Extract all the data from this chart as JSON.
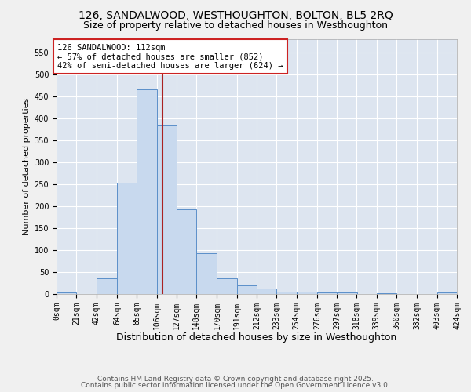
{
  "title1": "126, SANDALWOOD, WESTHOUGHTON, BOLTON, BL5 2RQ",
  "title2": "Size of property relative to detached houses in Westhoughton",
  "xlabel": "Distribution of detached houses by size in Westhoughton",
  "ylabel": "Number of detached properties",
  "bar_color": "#c8d9ee",
  "bar_edge_color": "#5b8fc9",
  "background_color": "#dde5f0",
  "grid_color": "#ffffff",
  "bins": [
    "0sqm",
    "21sqm",
    "42sqm",
    "64sqm",
    "85sqm",
    "106sqm",
    "127sqm",
    "148sqm",
    "170sqm",
    "191sqm",
    "212sqm",
    "233sqm",
    "254sqm",
    "276sqm",
    "297sqm",
    "318sqm",
    "339sqm",
    "360sqm",
    "382sqm",
    "403sqm",
    "424sqm"
  ],
  "bin_edges": [
    0,
    21,
    42,
    64,
    85,
    106,
    127,
    148,
    170,
    191,
    212,
    233,
    254,
    276,
    297,
    318,
    339,
    360,
    382,
    403,
    424
  ],
  "counts": [
    3,
    0,
    35,
    253,
    465,
    383,
    192,
    93,
    35,
    20,
    12,
    5,
    5,
    3,
    3,
    0,
    2,
    0,
    0,
    3
  ],
  "property_size": 112,
  "vline_color": "#aa2222",
  "annotation_line1": "126 SANDALWOOD: 112sqm",
  "annotation_line2": "← 57% of detached houses are smaller (852)",
  "annotation_line3": "42% of semi-detached houses are larger (624) →",
  "annotation_box_color": "#ffffff",
  "annotation_text_color": "#000000",
  "annotation_edge_color": "#cc2222",
  "ylim": [
    0,
    580
  ],
  "yticks": [
    0,
    50,
    100,
    150,
    200,
    250,
    300,
    350,
    400,
    450,
    500,
    550
  ],
  "footnote1": "Contains HM Land Registry data © Crown copyright and database right 2025.",
  "footnote2": "Contains public sector information licensed under the Open Government Licence v3.0.",
  "title1_fontsize": 10,
  "title2_fontsize": 9,
  "xlabel_fontsize": 9,
  "ylabel_fontsize": 8,
  "tick_fontsize": 7,
  "annotation_fontsize": 7.5,
  "footnote_fontsize": 6.5
}
